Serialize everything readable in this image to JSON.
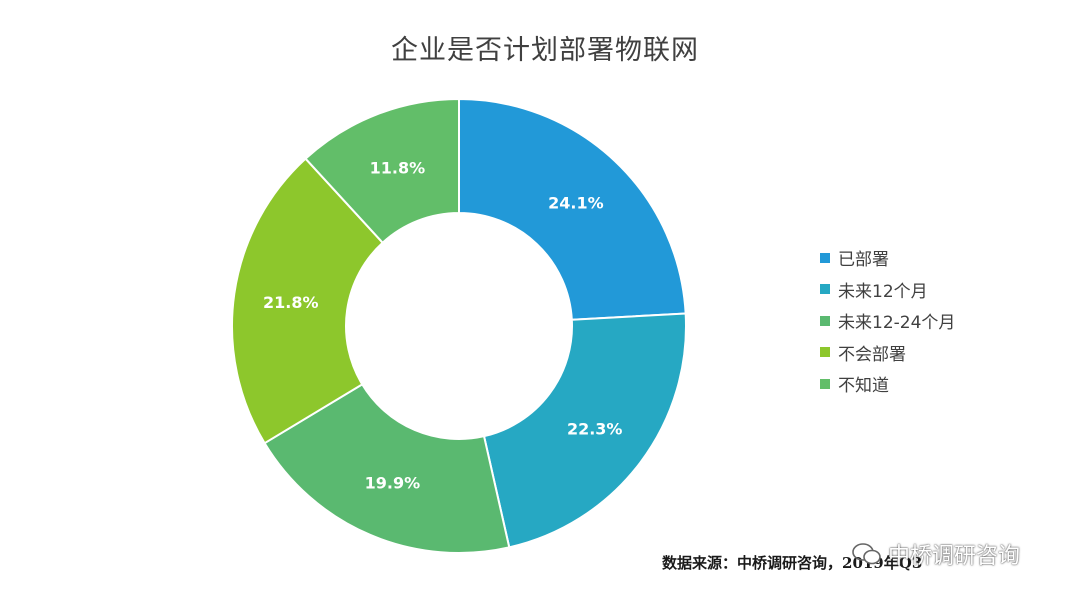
{
  "chart_data": {
    "type": "donut",
    "title": "企业是否计划部署物联网",
    "categories": [
      "已部署",
      "未来12个月",
      "未来12-24个月",
      "不会部署",
      "不知道"
    ],
    "values": [
      24.1,
      22.3,
      19.9,
      21.8,
      11.8
    ],
    "data_labels": [
      "24.1%",
      "22.3%",
      "19.9%",
      "21.8%",
      "11.8%"
    ],
    "colors": [
      "#2299D8",
      "#26A8C3",
      "#5AB970",
      "#8DC72C",
      "#62BE69"
    ],
    "legend_position": "right"
  },
  "source": "数据来源：中桥调研咨询，2019年Q3",
  "watermark": "中桥调研咨询"
}
